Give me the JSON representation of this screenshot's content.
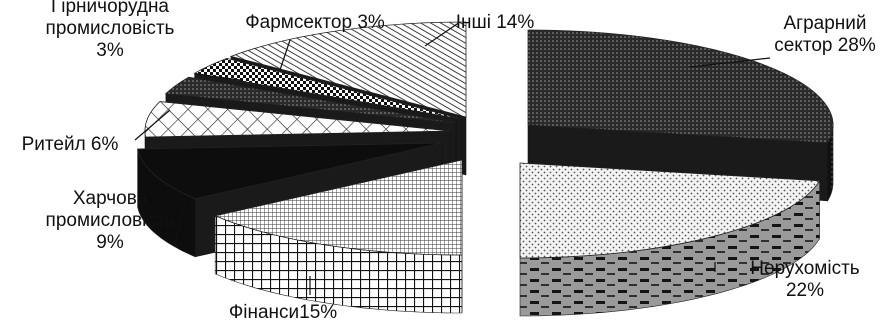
{
  "chart_data": {
    "type": "pie",
    "style": "3d-exploded",
    "legend": "none",
    "slices": [
      {
        "label_lines": [
          "Аграрний",
          "сектор 28%"
        ],
        "value": 28,
        "pattern": "dark-dots"
      },
      {
        "label_lines": [
          "Нерухомість",
          "22%"
        ],
        "value": 22,
        "pattern": "light-dots"
      },
      {
        "label_lines": [
          "Фінанси15%"
        ],
        "value": 15,
        "pattern": "fine-grid"
      },
      {
        "label_lines": [
          "Харчова",
          "промисловість",
          "9%"
        ],
        "value": 9,
        "pattern": "black"
      },
      {
        "label_lines": [
          "Ритейл 6%"
        ],
        "value": 6,
        "pattern": "diamond-grid"
      },
      {
        "label_lines": [
          "Гірничорудна",
          "промисловість",
          "3%"
        ],
        "value": 3,
        "pattern": "dark-dots"
      },
      {
        "label_lines": [
          "Фармсектор 3%"
        ],
        "value": 3,
        "pattern": "checker"
      },
      {
        "label_lines": [
          "Інші 14%"
        ],
        "value": 14,
        "pattern": "diagonal-hatch"
      }
    ]
  }
}
